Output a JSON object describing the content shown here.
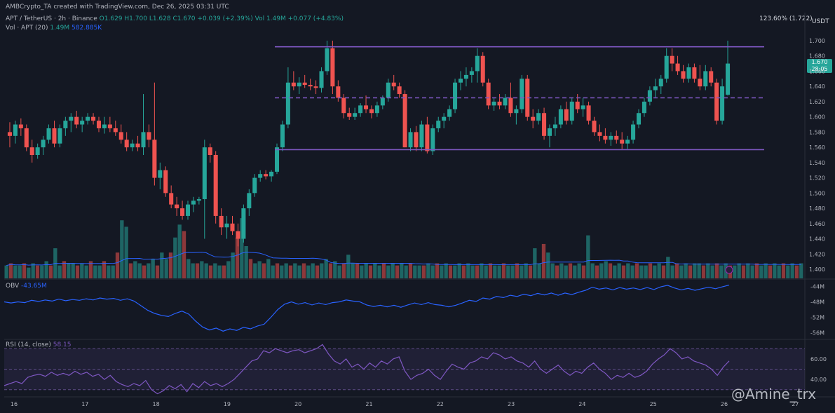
{
  "header": {
    "creator": "AMBCrypto_TA created with TradingView.com, Dec 26, 2025 03:31 UTC",
    "symbol": "APT / TetherUS · 2h · Binance",
    "o": "O1.629",
    "h": "H1.700",
    "l": "L1.628",
    "c": "C1.670",
    "change": "+0.039 (+2.39%)",
    "vol_label": "Vol · APT (20)",
    "vol_value": "1.49M",
    "vol_ma": "582.885K",
    "vol_line": "Vol 1.49M",
    "vol_change": "+0.077 (+4.83%)"
  },
  "fib_label": "123.60% (1.722)",
  "currency": "USDT",
  "price_tag": {
    "price": "1.670",
    "countdown": "28:05"
  },
  "obv": {
    "label": "OBV",
    "value": "-43.65M"
  },
  "rsi": {
    "label": "RSI (14, close)",
    "value": "58.15"
  },
  "watermark": "@Amine_trx",
  "colors": {
    "up": "#26a69a",
    "down": "#ef5350",
    "range": "#7e57c2",
    "obv": "#2962ff",
    "rsi": "#7e57c2"
  },
  "chart_data": [
    {
      "type": "candlestick",
      "title": "APT / TetherUS · 2h · Binance",
      "y_ticks": [
        "1.700",
        "1.680",
        "1.660",
        "1.640",
        "1.620",
        "1.600",
        "1.580",
        "1.560",
        "1.540",
        "1.520",
        "1.500",
        "1.480",
        "1.460",
        "1.440",
        "1.420",
        "1.400"
      ],
      "x_ticks": [
        "16",
        "17",
        "18",
        "19",
        "20",
        "21",
        "22",
        "23",
        "24",
        "25",
        "26",
        "27"
      ],
      "ylim": [
        1.395,
        1.705
      ],
      "range_high": 1.692,
      "range_mid": 1.625,
      "range_low": 1.557,
      "candles": [
        [
          1.58,
          1.593,
          1.56,
          1.575
        ],
        [
          1.575,
          1.595,
          1.565,
          1.59
        ],
        [
          1.59,
          1.598,
          1.575,
          1.585
        ],
        [
          1.585,
          1.59,
          1.555,
          1.56
        ],
        [
          1.56,
          1.57,
          1.54,
          1.55
        ],
        [
          1.55,
          1.565,
          1.545,
          1.56
        ],
        [
          1.56,
          1.575,
          1.55,
          1.57
        ],
        [
          1.57,
          1.59,
          1.565,
          1.585
        ],
        [
          1.585,
          1.595,
          1.56,
          1.565
        ],
        [
          1.565,
          1.59,
          1.56,
          1.585
        ],
        [
          1.585,
          1.6,
          1.575,
          1.595
        ],
        [
          1.595,
          1.605,
          1.58,
          1.6
        ],
        [
          1.6,
          1.608,
          1.585,
          1.59
        ],
        [
          1.59,
          1.6,
          1.58,
          1.595
        ],
        [
          1.595,
          1.605,
          1.59,
          1.6
        ],
        [
          1.6,
          1.605,
          1.59,
          1.595
        ],
        [
          1.595,
          1.6,
          1.58,
          1.585
        ],
        [
          1.585,
          1.6,
          1.578,
          1.59
        ],
        [
          1.59,
          1.6,
          1.58,
          1.585
        ],
        [
          1.585,
          1.595,
          1.575,
          1.58
        ],
        [
          1.58,
          1.59,
          1.565,
          1.57
        ],
        [
          1.57,
          1.58,
          1.555,
          1.56
        ],
        [
          1.56,
          1.57,
          1.555,
          1.565
        ],
        [
          1.565,
          1.575,
          1.555,
          1.56
        ],
        [
          1.56,
          1.63,
          1.55,
          1.58
        ],
        [
          1.58,
          1.59,
          1.56,
          1.57
        ],
        [
          1.57,
          1.645,
          1.51,
          1.52
        ],
        [
          1.52,
          1.54,
          1.505,
          1.53
        ],
        [
          1.53,
          1.535,
          1.495,
          1.5
        ],
        [
          1.5,
          1.51,
          1.48,
          1.485
        ],
        [
          1.485,
          1.495,
          1.47,
          1.48
        ],
        [
          1.48,
          1.49,
          1.465,
          1.47
        ],
        [
          1.47,
          1.49,
          1.465,
          1.485
        ],
        [
          1.485,
          1.495,
          1.475,
          1.49
        ],
        [
          1.49,
          1.495,
          1.485,
          1.492
        ],
        [
          1.492,
          1.57,
          1.44,
          1.56
        ],
        [
          1.56,
          1.565,
          1.54,
          1.55
        ],
        [
          1.55,
          1.555,
          1.46,
          1.47
        ],
        [
          1.47,
          1.48,
          1.445,
          1.455
        ],
        [
          1.455,
          1.47,
          1.44,
          1.46
        ],
        [
          1.46,
          1.47,
          1.445,
          1.45
        ],
        [
          1.45,
          1.46,
          1.43,
          1.44
        ],
        [
          1.44,
          1.485,
          1.435,
          1.48
        ],
        [
          1.48,
          1.505,
          1.47,
          1.5
        ],
        [
          1.5,
          1.525,
          1.495,
          1.52
        ],
        [
          1.52,
          1.53,
          1.515,
          1.525
        ],
        [
          1.525,
          1.53,
          1.518,
          1.522
        ],
        [
          1.522,
          1.53,
          1.515,
          1.528
        ],
        [
          1.528,
          1.565,
          1.525,
          1.56
        ],
        [
          1.56,
          1.595,
          1.555,
          1.59
        ],
        [
          1.59,
          1.665,
          1.585,
          1.645
        ],
        [
          1.645,
          1.66,
          1.635,
          1.64
        ],
        [
          1.64,
          1.652,
          1.63,
          1.645
        ],
        [
          1.645,
          1.655,
          1.638,
          1.642
        ],
        [
          1.642,
          1.65,
          1.635,
          1.64
        ],
        [
          1.64,
          1.648,
          1.63,
          1.638
        ],
        [
          1.638,
          1.665,
          1.632,
          1.66
        ],
        [
          1.66,
          1.7,
          1.655,
          1.69
        ],
        [
          1.69,
          1.7,
          1.63,
          1.64
        ],
        [
          1.64,
          1.648,
          1.62,
          1.625
        ],
        [
          1.625,
          1.63,
          1.598,
          1.605
        ],
        [
          1.605,
          1.612,
          1.596,
          1.6
        ],
        [
          1.6,
          1.612,
          1.596,
          1.605
        ],
        [
          1.605,
          1.618,
          1.6,
          1.615
        ],
        [
          1.615,
          1.628,
          1.605,
          1.61
        ],
        [
          1.61,
          1.615,
          1.598,
          1.605
        ],
        [
          1.605,
          1.62,
          1.6,
          1.615
        ],
        [
          1.615,
          1.628,
          1.61,
          1.625
        ],
        [
          1.625,
          1.65,
          1.62,
          1.645
        ],
        [
          1.645,
          1.655,
          1.635,
          1.64
        ],
        [
          1.64,
          1.645,
          1.625,
          1.63
        ],
        [
          1.63,
          1.635,
          1.56,
          1.56
        ],
        [
          1.56,
          1.585,
          1.555,
          1.58
        ],
        [
          1.58,
          1.588,
          1.555,
          1.56
        ],
        [
          1.56,
          1.595,
          1.555,
          1.59
        ],
        [
          1.59,
          1.6,
          1.552,
          1.555
        ],
        [
          1.555,
          1.59,
          1.55,
          1.585
        ],
        [
          1.585,
          1.6,
          1.58,
          1.595
        ],
        [
          1.595,
          1.605,
          1.585,
          1.6
        ],
        [
          1.6,
          1.615,
          1.595,
          1.61
        ],
        [
          1.61,
          1.65,
          1.605,
          1.645
        ],
        [
          1.645,
          1.66,
          1.635,
          1.65
        ],
        [
          1.65,
          1.665,
          1.64,
          1.655
        ],
        [
          1.655,
          1.665,
          1.645,
          1.66
        ],
        [
          1.66,
          1.69,
          1.645,
          1.68
        ],
        [
          1.68,
          1.685,
          1.64,
          1.645
        ],
        [
          1.645,
          1.65,
          1.61,
          1.615
        ],
        [
          1.615,
          1.625,
          1.608,
          1.62
        ],
        [
          1.62,
          1.63,
          1.61,
          1.615
        ],
        [
          1.615,
          1.63,
          1.61,
          1.625
        ],
        [
          1.625,
          1.645,
          1.6,
          1.605
        ],
        [
          1.605,
          1.615,
          1.59,
          1.61
        ],
        [
          1.61,
          1.655,
          1.605,
          1.65
        ],
        [
          1.65,
          1.655,
          1.595,
          1.6
        ],
        [
          1.6,
          1.61,
          1.585,
          1.595
        ],
        [
          1.595,
          1.61,
          1.59,
          1.605
        ],
        [
          1.605,
          1.612,
          1.57,
          1.575
        ],
        [
          1.575,
          1.59,
          1.56,
          1.585
        ],
        [
          1.585,
          1.6,
          1.575,
          1.59
        ],
        [
          1.59,
          1.615,
          1.585,
          1.61
        ],
        [
          1.61,
          1.62,
          1.59,
          1.595
        ],
        [
          1.595,
          1.625,
          1.59,
          1.62
        ],
        [
          1.62,
          1.63,
          1.605,
          1.61
        ],
        [
          1.61,
          1.625,
          1.6,
          1.615
        ],
        [
          1.615,
          1.62,
          1.59,
          1.595
        ],
        [
          1.595,
          1.6,
          1.575,
          1.58
        ],
        [
          1.58,
          1.59,
          1.568,
          1.575
        ],
        [
          1.575,
          1.585,
          1.565,
          1.57
        ],
        [
          1.57,
          1.58,
          1.562,
          1.575
        ],
        [
          1.575,
          1.582,
          1.565,
          1.57
        ],
        [
          1.57,
          1.58,
          1.558,
          1.565
        ],
        [
          1.565,
          1.575,
          1.558,
          1.57
        ],
        [
          1.57,
          1.595,
          1.565,
          1.59
        ],
        [
          1.59,
          1.61,
          1.585,
          1.605
        ],
        [
          1.605,
          1.625,
          1.6,
          1.62
        ],
        [
          1.62,
          1.64,
          1.615,
          1.635
        ],
        [
          1.635,
          1.65,
          1.625,
          1.64
        ],
        [
          1.64,
          1.655,
          1.63,
          1.65
        ],
        [
          1.65,
          1.69,
          1.645,
          1.68
        ],
        [
          1.68,
          1.69,
          1.66,
          1.67
        ],
        [
          1.67,
          1.68,
          1.655,
          1.66
        ],
        [
          1.66,
          1.668,
          1.645,
          1.65
        ],
        [
          1.65,
          1.67,
          1.645,
          1.665
        ],
        [
          1.665,
          1.67,
          1.645,
          1.65
        ],
        [
          1.65,
          1.668,
          1.635,
          1.64
        ],
        [
          1.64,
          1.668,
          1.635,
          1.66
        ],
        [
          1.66,
          1.665,
          1.64,
          1.645
        ],
        [
          1.645,
          1.65,
          1.59,
          1.595
        ],
        [
          1.595,
          1.65,
          1.59,
          1.64
        ],
        [
          1.629,
          1.7,
          1.628,
          1.67
        ]
      ],
      "volume": [
        0.3,
        0.35,
        0.3,
        0.3,
        0.35,
        0.25,
        0.35,
        0.3,
        0.3,
        0.4,
        0.3,
        0.7,
        0.3,
        0.4,
        0.35,
        0.35,
        0.3,
        0.35,
        0.3,
        0.4,
        0.3,
        0.3,
        0.4,
        0.3,
        0.3,
        0.6,
        1.35,
        1.2,
        0.35,
        0.4,
        0.35,
        0.3,
        0.35,
        0.45,
        0.3,
        0.6,
        0.45,
        0.6,
        0.95,
        1.25,
        1.1,
        0.45,
        0.35,
        0.35,
        0.4,
        0.35,
        0.3,
        0.35,
        0.3,
        0.3,
        0.4,
        0.6,
        0.95,
        1.4,
        0.75,
        0.45,
        0.35,
        0.4,
        0.35,
        0.45,
        0.3,
        0.35,
        0.3,
        0.35,
        0.3,
        0.35,
        0.3,
        0.35,
        0.3,
        0.35,
        0.3,
        0.35,
        0.45,
        0.35,
        0.4,
        0.3,
        0.35,
        0.55,
        0.35,
        0.35,
        0.3,
        0.35,
        0.3,
        0.35,
        0.3,
        0.35,
        0.3,
        0.35,
        0.3,
        0.35,
        0.3,
        0.35,
        0.3,
        0.3,
        0.3,
        0.35,
        0.3,
        0.35,
        0.3,
        0.35,
        0.3,
        0.3,
        0.35,
        0.3,
        0.35,
        0.3,
        0.3,
        0.35,
        0.3,
        0.35,
        0.3,
        0.3,
        0.35,
        0.3,
        0.3,
        0.35,
        0.3,
        0.35,
        0.3,
        0.7,
        0.35,
        0.8,
        0.6,
        0.35,
        0.3,
        0.35,
        0.3,
        0.35,
        0.3,
        0.35,
        0.3,
        1.0,
        0.35,
        0.3,
        0.35,
        0.4,
        0.35,
        0.3,
        0.35,
        0.3,
        0.35,
        0.3,
        0.35,
        0.3,
        0.3,
        0.35,
        0.3,
        0.35,
        0.3,
        0.5,
        0.3,
        0.35,
        0.3,
        0.35,
        0.3,
        0.35,
        0.35,
        0.3,
        0.35,
        0.3,
        0.35,
        0.3,
        0.35,
        0.3,
        0.3,
        0.35,
        0.3,
        0.35,
        0.3,
        0.35,
        0.3,
        0.35,
        0.3,
        0.35,
        0.3,
        0.35,
        0.3,
        0.35,
        0.3,
        0.35
      ]
    },
    {
      "type": "line",
      "title": "OBV",
      "y_ticks": [
        "-44M",
        "-48M",
        "-52M",
        "-56M"
      ],
      "ylim": [
        -57,
        -43
      ],
      "values": [
        -48.0,
        -48.3,
        -48.0,
        -48.2,
        -47.6,
        -47.9,
        -47.5,
        -47.8,
        -47.3,
        -47.7,
        -47.4,
        -47.6,
        -47.2,
        -47.5,
        -47.0,
        -47.3,
        -47.1,
        -47.6,
        -47.2,
        -47.8,
        -49.0,
        -50.2,
        -51.0,
        -51.5,
        -51.8,
        -51.0,
        -50.4,
        -51.2,
        -53.0,
        -54.5,
        -55.3,
        -54.8,
        -55.6,
        -55.0,
        -55.4,
        -54.6,
        -55.0,
        -54.3,
        -53.8,
        -52.0,
        -50.0,
        -48.6,
        -48.0,
        -48.6,
        -48.2,
        -48.8,
        -48.3,
        -48.7,
        -48.2,
        -48.0,
        -47.5,
        -47.8,
        -48.0,
        -48.8,
        -49.2,
        -48.9,
        -49.3,
        -48.9,
        -49.4,
        -48.8,
        -48.3,
        -48.7,
        -48.2,
        -48.7,
        -48.9,
        -49.3,
        -48.9,
        -48.3,
        -47.6,
        -47.9,
        -47.0,
        -47.3,
        -46.6,
        -46.9,
        -46.3,
        -46.6,
        -46.0,
        -46.4,
        -45.8,
        -46.2,
        -45.7,
        -46.3,
        -45.7,
        -46.1,
        -45.5,
        -45.0,
        -44.2,
        -44.7,
        -44.4,
        -44.9,
        -44.3,
        -44.7,
        -44.4,
        -44.8,
        -44.3,
        -44.8,
        -44.1,
        -43.7,
        -44.4,
        -44.9,
        -44.5,
        -45.0,
        -44.6,
        -44.2,
        -44.6,
        -44.1,
        -43.65
      ]
    },
    {
      "type": "line",
      "title": "RSI (14, close)",
      "y_ticks": [
        "60.00",
        "40.00"
      ],
      "ylim": [
        23,
        77
      ],
      "bands": [
        70,
        50,
        30
      ],
      "values": [
        34,
        36,
        38,
        36,
        42,
        44,
        45,
        43,
        47,
        44,
        46,
        44,
        48,
        45,
        47,
        43,
        45,
        40,
        44,
        38,
        35,
        33,
        36,
        34,
        39,
        30,
        26,
        29,
        34,
        31,
        35,
        28,
        36,
        32,
        38,
        34,
        36,
        33,
        36,
        40,
        46,
        52,
        58,
        60,
        68,
        66,
        70,
        68,
        66,
        68,
        69,
        66,
        68,
        70,
        74,
        65,
        58,
        55,
        60,
        52,
        55,
        50,
        56,
        52,
        58,
        55,
        60,
        62,
        48,
        40,
        44,
        46,
        50,
        44,
        40,
        48,
        55,
        52,
        50,
        56,
        58,
        62,
        60,
        66,
        64,
        60,
        62,
        58,
        56,
        52,
        58,
        50,
        46,
        50,
        54,
        48,
        44,
        48,
        46,
        52,
        56,
        50,
        46,
        40,
        44,
        42,
        46,
        42,
        44,
        48,
        55,
        60,
        64,
        70,
        66,
        60,
        62,
        58,
        56,
        54,
        50,
        44,
        52,
        58
      ]
    }
  ]
}
